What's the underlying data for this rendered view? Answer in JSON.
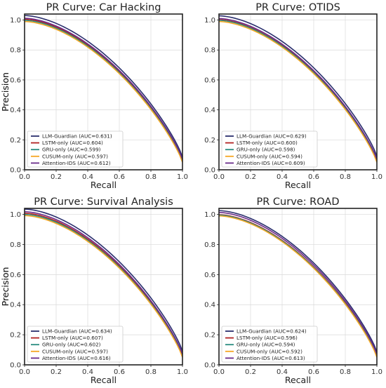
{
  "colors": {
    "LLM-Guardian": "#2a2f6e",
    "LSTM-only": "#b22222",
    "GRU-only": "#2a8c7f",
    "CUSUM-only": "#f5a623",
    "Attention-IDS": "#6a2b8a"
  },
  "chart_data": [
    {
      "type": "line",
      "title": "PR Curve: Car Hacking",
      "xlabel": "Recall",
      "ylabel": "Precision",
      "xlim": [
        0.0,
        1.0
      ],
      "ylim": [
        0.0,
        1.04
      ],
      "xticks": [
        "0.0",
        "0.2",
        "0.4",
        "0.6",
        "0.8",
        "1.0"
      ],
      "yticks": [
        "0.0",
        "0.2",
        "0.4",
        "0.6",
        "0.8",
        "1.0"
      ],
      "grid": true,
      "legend_position": "lower-left",
      "series": [
        {
          "name": "LLM-Guardian (AUC=0.631)",
          "key": "LLM-Guardian",
          "start": 1.03,
          "end": 0.085
        },
        {
          "name": "LSTM-only (AUC=0.604)",
          "key": "LSTM-only",
          "start": 1.005,
          "end": 0.06
        },
        {
          "name": "GRU-only (AUC=0.599)",
          "key": "GRU-only",
          "start": 0.998,
          "end": 0.055
        },
        {
          "name": "CUSUM-only (AUC=0.597)",
          "key": "CUSUM-only",
          "start": 0.99,
          "end": 0.05
        },
        {
          "name": "Attention-IDS (AUC=0.612)",
          "key": "Attention-IDS",
          "start": 1.012,
          "end": 0.07
        }
      ]
    },
    {
      "type": "line",
      "title": "PR Curve: OTIDS",
      "xlabel": "Recall",
      "ylabel": "Precision",
      "xlim": [
        0.0,
        1.0
      ],
      "ylim": [
        0.0,
        1.04
      ],
      "xticks": [
        "0.0",
        "0.2",
        "0.4",
        "0.6",
        "0.8",
        "1.0"
      ],
      "yticks": [
        "0.0",
        "0.2",
        "0.4",
        "0.6",
        "0.8",
        "1.0"
      ],
      "grid": true,
      "legend_position": "lower-left",
      "series": [
        {
          "name": "LLM-Guardian (AUC=0.629)",
          "key": "LLM-Guardian",
          "start": 1.028,
          "end": 0.09
        },
        {
          "name": "LSTM-only (AUC=0.600)",
          "key": "LSTM-only",
          "start": 1.002,
          "end": 0.06
        },
        {
          "name": "GRU-only (AUC=0.598)",
          "key": "GRU-only",
          "start": 0.998,
          "end": 0.055
        },
        {
          "name": "CUSUM-only (AUC=0.594)",
          "key": "CUSUM-only",
          "start": 0.99,
          "end": 0.05
        },
        {
          "name": "Attention-IDS (AUC=0.609)",
          "key": "Attention-IDS",
          "start": 1.01,
          "end": 0.07
        }
      ]
    },
    {
      "type": "line",
      "title": "PR Curve: Survival Analysis",
      "xlabel": "Recall",
      "ylabel": "Precision",
      "xlim": [
        0.0,
        1.0
      ],
      "ylim": [
        0.0,
        1.04
      ],
      "xticks": [
        "0.0",
        "0.2",
        "0.4",
        "0.6",
        "0.8",
        "1.0"
      ],
      "yticks": [
        "0.0",
        "0.2",
        "0.4",
        "0.6",
        "0.8",
        "1.0"
      ],
      "grid": true,
      "legend_position": "lower-left",
      "series": [
        {
          "name": "LLM-Guardian (AUC=0.634)",
          "key": "LLM-Guardian",
          "start": 1.035,
          "end": 0.09
        },
        {
          "name": "LSTM-only (AUC=0.607)",
          "key": "LSTM-only",
          "start": 1.008,
          "end": 0.06
        },
        {
          "name": "GRU-only (AUC=0.602)",
          "key": "GRU-only",
          "start": 1.0,
          "end": 0.055
        },
        {
          "name": "CUSUM-only (AUC=0.597)",
          "key": "CUSUM-only",
          "start": 0.992,
          "end": 0.05
        },
        {
          "name": "Attention-IDS (AUC=0.616)",
          "key": "Attention-IDS",
          "start": 1.018,
          "end": 0.07
        }
      ]
    },
    {
      "type": "line",
      "title": "PR Curve: ROAD",
      "xlabel": "Recall",
      "ylabel": "Precision",
      "xlim": [
        0.0,
        1.0
      ],
      "ylim": [
        0.0,
        1.04
      ],
      "xticks": [
        "0.0",
        "0.2",
        "0.4",
        "0.6",
        "0.8",
        "1.0"
      ],
      "yticks": [
        "0.0",
        "0.2",
        "0.4",
        "0.6",
        "0.8",
        "1.0"
      ],
      "grid": true,
      "legend_position": "lower-left",
      "series": [
        {
          "name": "LLM-Guardian (AUC=0.624)",
          "key": "LLM-Guardian",
          "start": 1.025,
          "end": 0.085
        },
        {
          "name": "LSTM-only (AUC=0.596)",
          "key": "LSTM-only",
          "start": 0.998,
          "end": 0.06
        },
        {
          "name": "GRU-only (AUC=0.594)",
          "key": "GRU-only",
          "start": 0.995,
          "end": 0.055
        },
        {
          "name": "CUSUM-only (AUC=0.592)",
          "key": "CUSUM-only",
          "start": 0.99,
          "end": 0.05
        },
        {
          "name": "Attention-IDS (AUC=0.613)",
          "key": "Attention-IDS",
          "start": 1.013,
          "end": 0.07
        }
      ]
    }
  ]
}
